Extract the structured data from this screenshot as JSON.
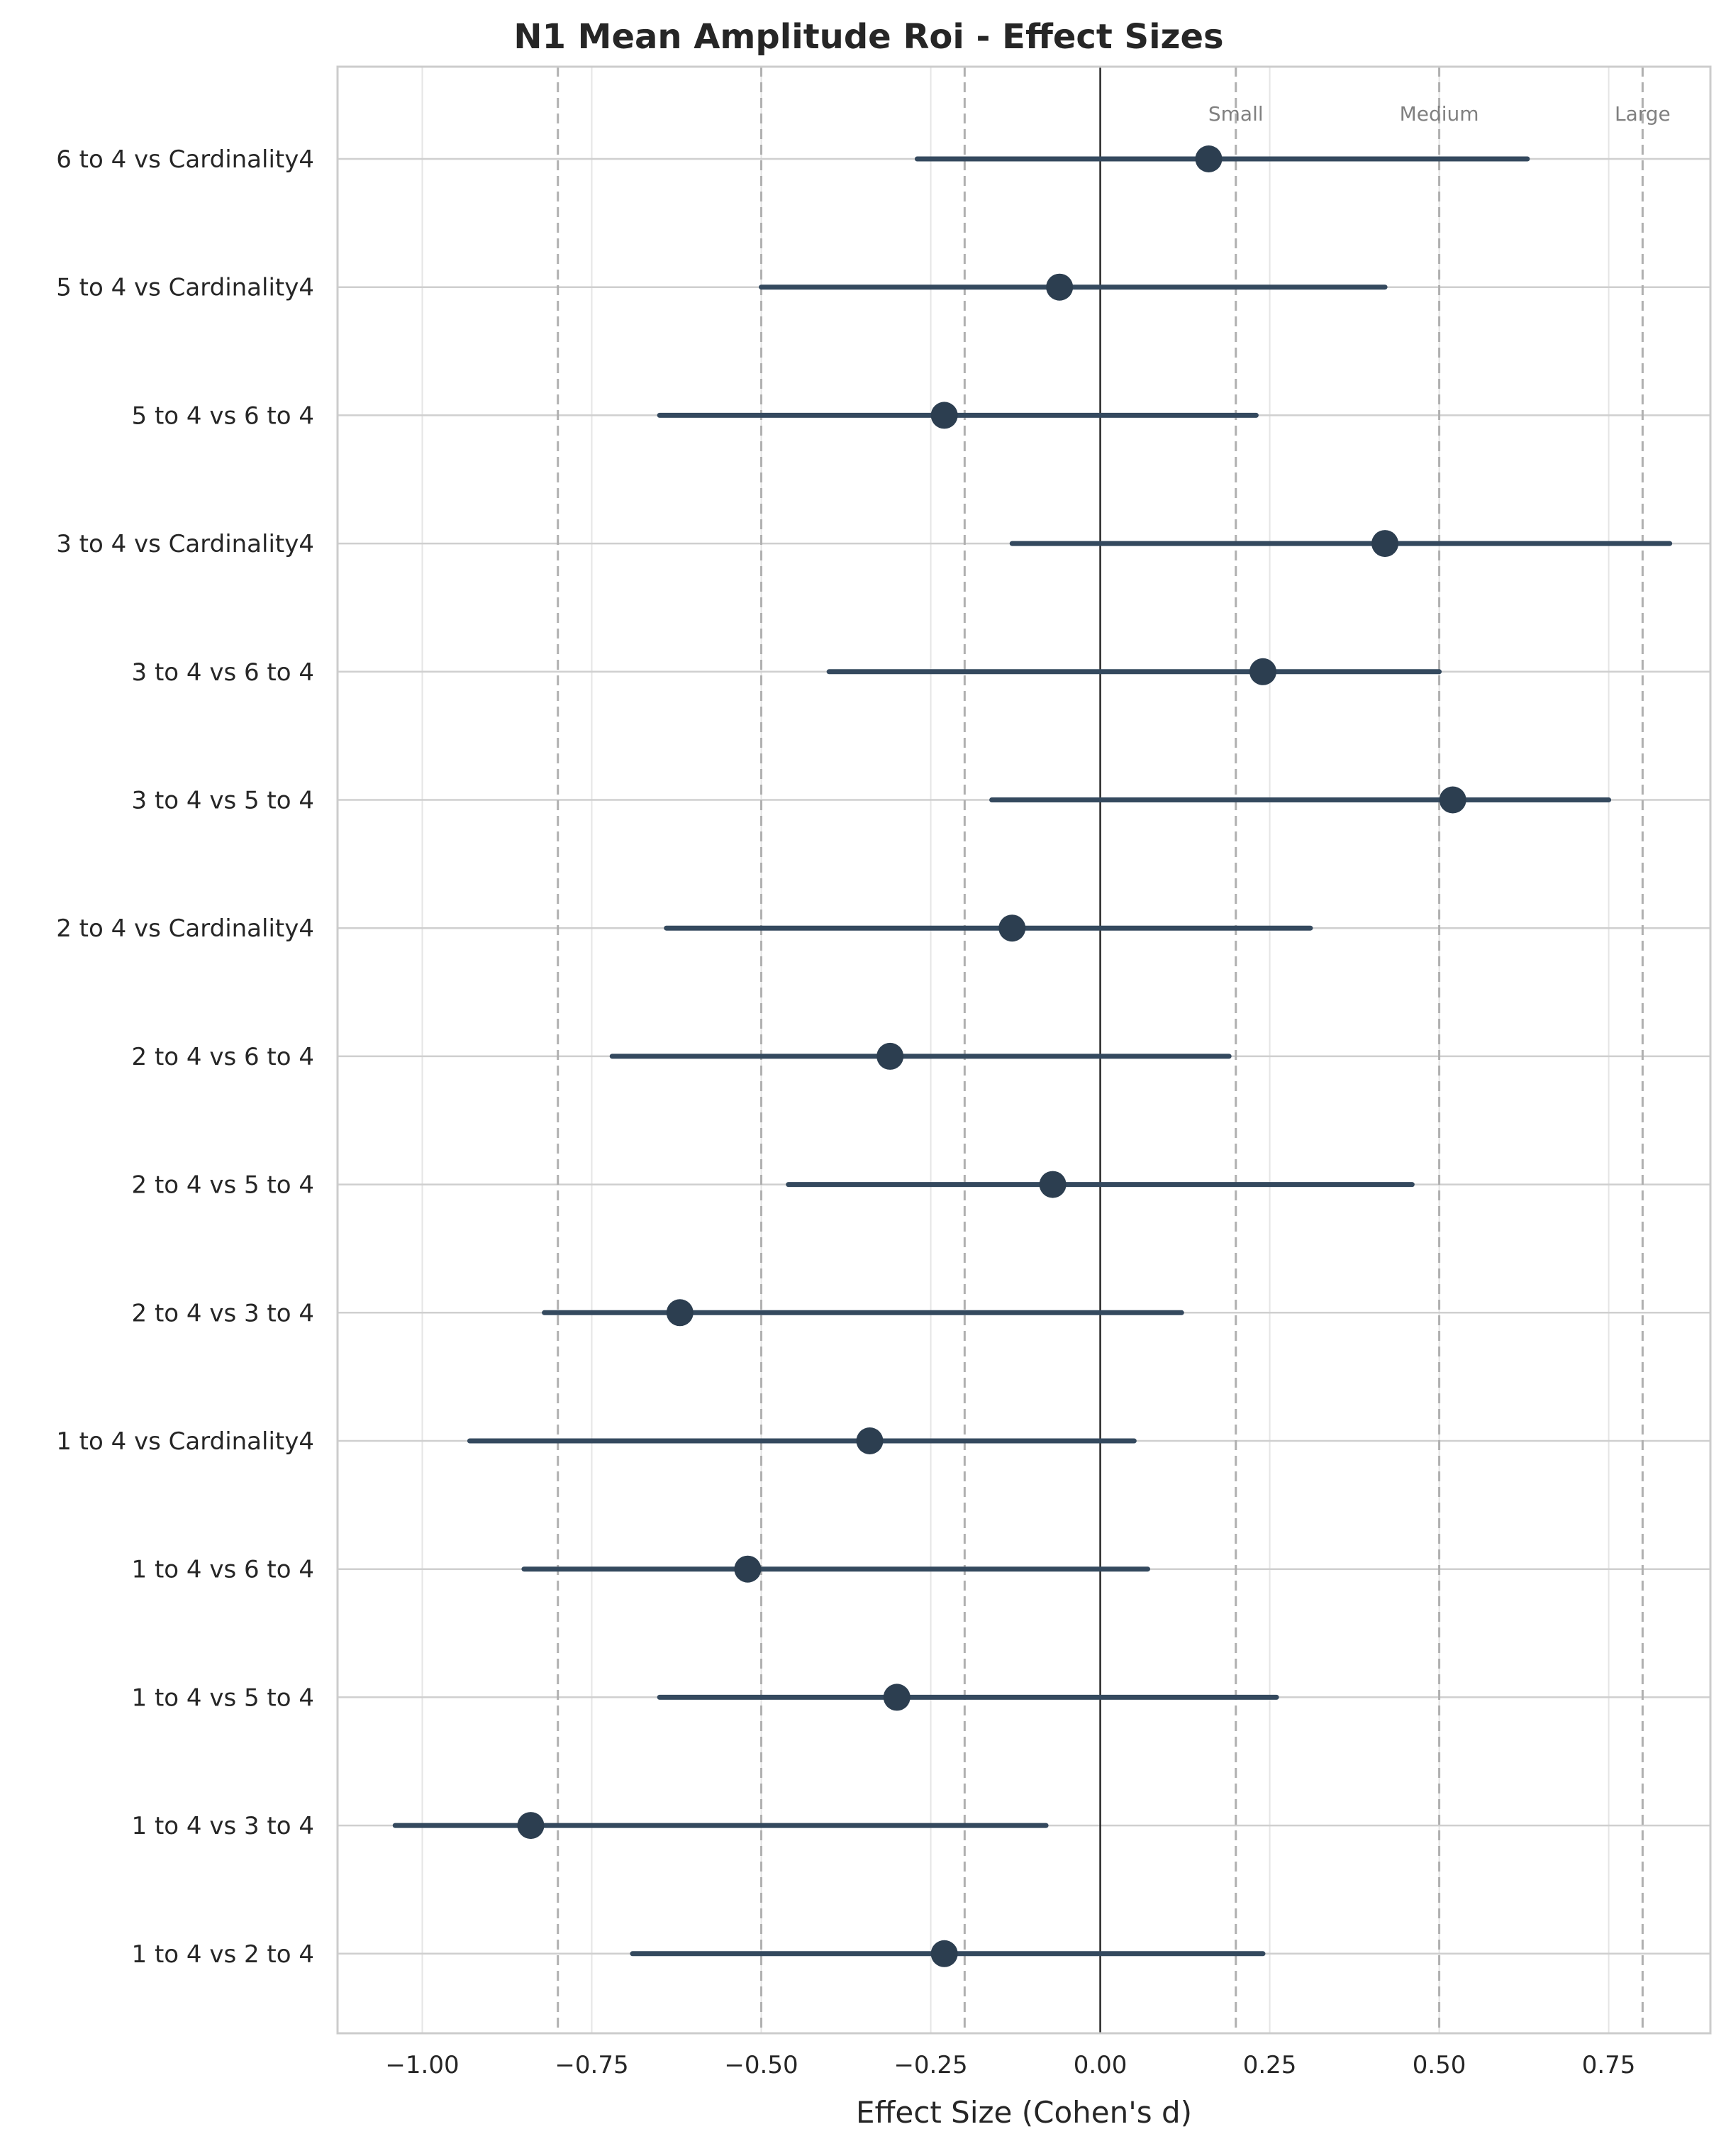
{
  "chart_data": {
    "type": "forest",
    "title": "N1 Mean Amplitude Roi - Effect Sizes",
    "xlabel": "Effect Size (Cohen's d)",
    "ylabel": "",
    "xlim": [
      -1.125,
      0.9
    ],
    "xticks": [
      -1.0,
      -0.75,
      -0.5,
      -0.25,
      0.0,
      0.25,
      0.5,
      0.75
    ],
    "xtick_labels": [
      "−1.00",
      "−0.75",
      "−0.50",
      "−0.25",
      "0.00",
      "0.25",
      "0.50",
      "0.75"
    ],
    "grid": true,
    "zero_line": 0.0,
    "thresholds": [
      {
        "label": "Small",
        "value": 0.2
      },
      {
        "label": "Medium",
        "value": 0.5
      },
      {
        "label": "Large",
        "value": 0.8
      }
    ],
    "negative_thresholds": [
      -0.2,
      -0.5,
      -0.8
    ],
    "comparisons": [
      {
        "label": "6 to 4 vs Cardinality4",
        "d": 0.16,
        "ci_low": -0.27,
        "ci_high": 0.63
      },
      {
        "label": "5 to 4 vs Cardinality4",
        "d": -0.06,
        "ci_low": -0.5,
        "ci_high": 0.42
      },
      {
        "label": "5 to 4 vs 6 to 4",
        "d": -0.23,
        "ci_low": -0.65,
        "ci_high": 0.23
      },
      {
        "label": "3 to 4 vs Cardinality4",
        "d": 0.42,
        "ci_low": -0.13,
        "ci_high": 0.84
      },
      {
        "label": "3 to 4 vs 6 to 4",
        "d": 0.24,
        "ci_low": -0.4,
        "ci_high": 0.5
      },
      {
        "label": "3 to 4 vs 5 to 4",
        "d": 0.52,
        "ci_low": -0.16,
        "ci_high": 0.75
      },
      {
        "label": "2 to 4 vs Cardinality4",
        "d": -0.13,
        "ci_low": -0.64,
        "ci_high": 0.31
      },
      {
        "label": "2 to 4 vs 6 to 4",
        "d": -0.31,
        "ci_low": -0.72,
        "ci_high": 0.19
      },
      {
        "label": "2 to 4 vs 5 to 4",
        "d": -0.07,
        "ci_low": -0.46,
        "ci_high": 0.46
      },
      {
        "label": "2 to 4 vs 3 to 4",
        "d": -0.62,
        "ci_low": -0.82,
        "ci_high": 0.12
      },
      {
        "label": "1 to 4 vs Cardinality4",
        "d": -0.34,
        "ci_low": -0.93,
        "ci_high": 0.05
      },
      {
        "label": "1 to 4 vs 6 to 4",
        "d": -0.52,
        "ci_low": -0.85,
        "ci_high": 0.07
      },
      {
        "label": "1 to 4 vs 5 to 4",
        "d": -0.3,
        "ci_low": -0.65,
        "ci_high": 0.26
      },
      {
        "label": "1 to 4 vs 3 to 4",
        "d": -0.84,
        "ci_low": -1.04,
        "ci_high": -0.08
      },
      {
        "label": "1 to 4 vs 2 to 4",
        "d": -0.23,
        "ci_low": -0.69,
        "ci_high": 0.24
      }
    ],
    "colors": {
      "point": "#2c3e50",
      "interval": "#34495e",
      "zero_line": "#262626",
      "threshold_line": "#b0b0b0",
      "grid": "#e5e5e5",
      "axes_edge": "#cccccc"
    }
  }
}
